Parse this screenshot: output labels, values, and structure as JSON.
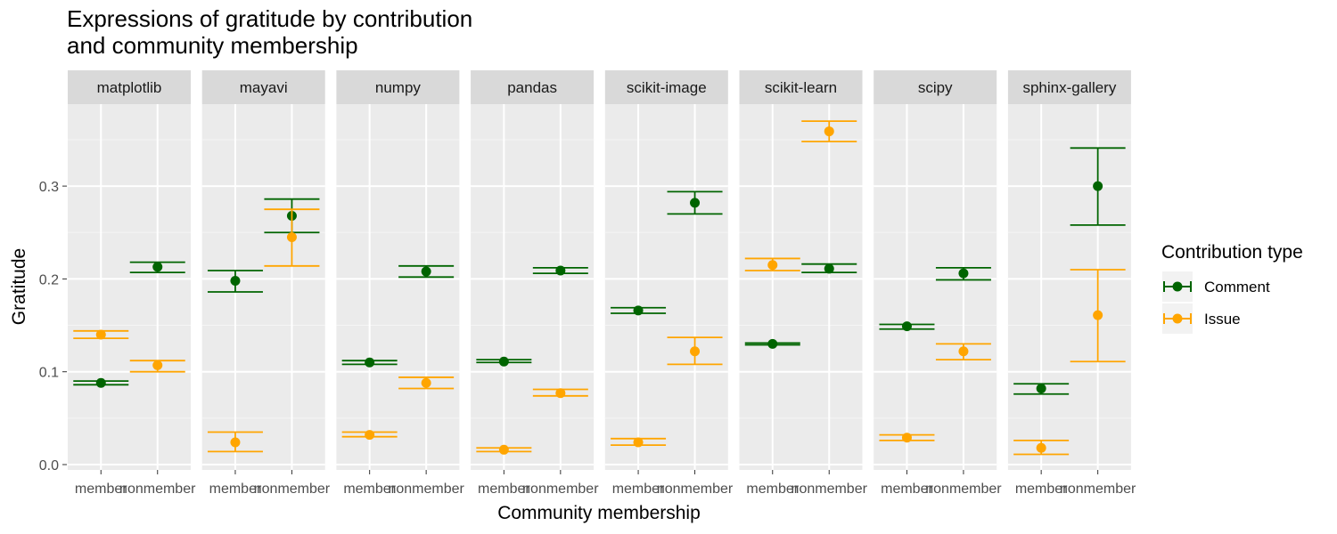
{
  "chart_data": {
    "type": "errorbar-scatter",
    "title_lines": [
      "Expressions of gratitude by contribution",
      "and community membership"
    ],
    "xlabel": "Community membership",
    "ylabel": "Gratitude",
    "ylim": [
      -0.005,
      0.39
    ],
    "y_ticks": [
      0.0,
      0.1,
      0.2,
      0.3
    ],
    "y_tick_labels": [
      "0.0",
      "0.1",
      "0.2",
      "0.3"
    ],
    "x_categories": [
      "member",
      "nonmember"
    ],
    "grid": true,
    "legend": {
      "title": "Contribution type",
      "placement": "right",
      "items": [
        {
          "name": "Comment",
          "color": "#006400"
        },
        {
          "name": "Issue",
          "color": "#FFA500"
        }
      ]
    },
    "facets": [
      {
        "name": "matplotlib",
        "series": [
          {
            "name": "Comment",
            "points": [
              {
                "x": "member",
                "y": 0.088,
                "lo": 0.086,
                "hi": 0.09
              },
              {
                "x": "nonmember",
                "y": 0.213,
                "lo": 0.207,
                "hi": 0.218
              }
            ]
          },
          {
            "name": "Issue",
            "points": [
              {
                "x": "member",
                "y": 0.14,
                "lo": 0.136,
                "hi": 0.144
              },
              {
                "x": "nonmember",
                "y": 0.107,
                "lo": 0.1,
                "hi": 0.112
              }
            ]
          }
        ]
      },
      {
        "name": "mayavi",
        "series": [
          {
            "name": "Comment",
            "points": [
              {
                "x": "member",
                "y": 0.198,
                "lo": 0.186,
                "hi": 0.209
              },
              {
                "x": "nonmember",
                "y": 0.268,
                "lo": 0.25,
                "hi": 0.286
              }
            ]
          },
          {
            "name": "Issue",
            "points": [
              {
                "x": "member",
                "y": 0.024,
                "lo": 0.014,
                "hi": 0.035
              },
              {
                "x": "nonmember",
                "y": 0.245,
                "lo": 0.214,
                "hi": 0.275
              }
            ]
          }
        ]
      },
      {
        "name": "numpy",
        "series": [
          {
            "name": "Comment",
            "points": [
              {
                "x": "member",
                "y": 0.11,
                "lo": 0.108,
                "hi": 0.112
              },
              {
                "x": "nonmember",
                "y": 0.208,
                "lo": 0.202,
                "hi": 0.214
              }
            ]
          },
          {
            "name": "Issue",
            "points": [
              {
                "x": "member",
                "y": 0.032,
                "lo": 0.03,
                "hi": 0.035
              },
              {
                "x": "nonmember",
                "y": 0.088,
                "lo": 0.082,
                "hi": 0.094
              }
            ]
          }
        ]
      },
      {
        "name": "pandas",
        "series": [
          {
            "name": "Comment",
            "points": [
              {
                "x": "member",
                "y": 0.111,
                "lo": 0.11,
                "hi": 0.113
              },
              {
                "x": "nonmember",
                "y": 0.209,
                "lo": 0.206,
                "hi": 0.212
              }
            ]
          },
          {
            "name": "Issue",
            "points": [
              {
                "x": "member",
                "y": 0.016,
                "lo": 0.014,
                "hi": 0.018
              },
              {
                "x": "nonmember",
                "y": 0.077,
                "lo": 0.074,
                "hi": 0.081
              }
            ]
          }
        ]
      },
      {
        "name": "scikit-image",
        "series": [
          {
            "name": "Comment",
            "points": [
              {
                "x": "member",
                "y": 0.166,
                "lo": 0.163,
                "hi": 0.169
              },
              {
                "x": "nonmember",
                "y": 0.282,
                "lo": 0.27,
                "hi": 0.294
              }
            ]
          },
          {
            "name": "Issue",
            "points": [
              {
                "x": "member",
                "y": 0.024,
                "lo": 0.021,
                "hi": 0.028
              },
              {
                "x": "nonmember",
                "y": 0.122,
                "lo": 0.108,
                "hi": 0.137
              }
            ]
          }
        ]
      },
      {
        "name": "scikit-learn",
        "series": [
          {
            "name": "Comment",
            "points": [
              {
                "x": "member",
                "y": 0.13,
                "lo": 0.129,
                "hi": 0.131
              },
              {
                "x": "nonmember",
                "y": 0.211,
                "lo": 0.207,
                "hi": 0.216
              }
            ]
          },
          {
            "name": "Issue",
            "points": [
              {
                "x": "member",
                "y": 0.215,
                "lo": 0.209,
                "hi": 0.222
              },
              {
                "x": "nonmember",
                "y": 0.359,
                "lo": 0.348,
                "hi": 0.37
              }
            ]
          }
        ]
      },
      {
        "name": "scipy",
        "series": [
          {
            "name": "Comment",
            "points": [
              {
                "x": "member",
                "y": 0.149,
                "lo": 0.146,
                "hi": 0.151
              },
              {
                "x": "nonmember",
                "y": 0.206,
                "lo": 0.199,
                "hi": 0.212
              }
            ]
          },
          {
            "name": "Issue",
            "points": [
              {
                "x": "member",
                "y": 0.029,
                "lo": 0.026,
                "hi": 0.032
              },
              {
                "x": "nonmember",
                "y": 0.122,
                "lo": 0.113,
                "hi": 0.13
              }
            ]
          }
        ]
      },
      {
        "name": "sphinx-gallery",
        "series": [
          {
            "name": "Comment",
            "points": [
              {
                "x": "member",
                "y": 0.082,
                "lo": 0.076,
                "hi": 0.087
              },
              {
                "x": "nonmember",
                "y": 0.3,
                "lo": 0.258,
                "hi": 0.341
              }
            ]
          },
          {
            "name": "Issue",
            "points": [
              {
                "x": "member",
                "y": 0.018,
                "lo": 0.011,
                "hi": 0.026
              },
              {
                "x": "nonmember",
                "y": 0.161,
                "lo": 0.111,
                "hi": 0.21
              }
            ]
          }
        ]
      }
    ]
  }
}
